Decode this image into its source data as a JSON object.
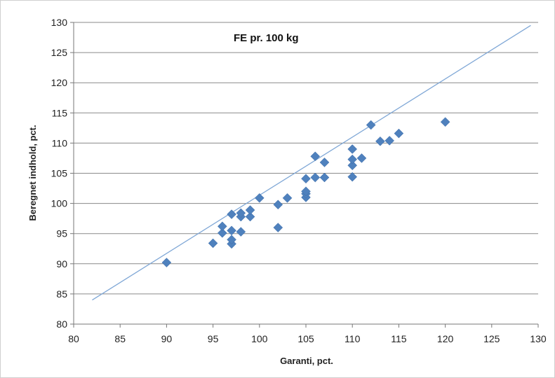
{
  "chart_data": {
    "type": "scatter",
    "title": "FE pr. 100 kg",
    "xlabel": "Garanti, pct.",
    "ylabel": "Beregnet indhold, pct.",
    "xlim": [
      80,
      130
    ],
    "ylim": [
      80,
      130
    ],
    "xticks": [
      "80",
      "85",
      "90",
      "95",
      "100",
      "105",
      "110",
      "115",
      "120",
      "125",
      "130"
    ],
    "yticks": [
      "80",
      "85",
      "90",
      "95",
      "100",
      "105",
      "110",
      "115",
      "120",
      "125",
      "130"
    ],
    "grid": "horizontal",
    "legend": "none",
    "marker": "diamond",
    "colors": {
      "marker": "#4F81BD",
      "line": "#7FA7D6",
      "grid": "#8a8a8a"
    },
    "reference_line": {
      "x": [
        82,
        129.2
      ],
      "y": [
        84,
        129.5
      ]
    },
    "points": [
      {
        "x": 90,
        "y": 90.2
      },
      {
        "x": 95,
        "y": 93.4
      },
      {
        "x": 96,
        "y": 95.1
      },
      {
        "x": 96,
        "y": 96.2
      },
      {
        "x": 97,
        "y": 93.3
      },
      {
        "x": 97,
        "y": 94.0
      },
      {
        "x": 97,
        "y": 95.5
      },
      {
        "x": 97,
        "y": 98.2
      },
      {
        "x": 98,
        "y": 95.3
      },
      {
        "x": 98,
        "y": 97.8
      },
      {
        "x": 98,
        "y": 98.4
      },
      {
        "x": 99,
        "y": 97.8
      },
      {
        "x": 99,
        "y": 98.9
      },
      {
        "x": 100,
        "y": 100.9
      },
      {
        "x": 102,
        "y": 96.0
      },
      {
        "x": 102,
        "y": 99.8
      },
      {
        "x": 103,
        "y": 100.9
      },
      {
        "x": 105,
        "y": 101.0
      },
      {
        "x": 105,
        "y": 101.6
      },
      {
        "x": 105,
        "y": 102.0
      },
      {
        "x": 105,
        "y": 104.1
      },
      {
        "x": 106,
        "y": 104.3
      },
      {
        "x": 106,
        "y": 107.8
      },
      {
        "x": 107,
        "y": 104.3
      },
      {
        "x": 107,
        "y": 106.8
      },
      {
        "x": 110,
        "y": 104.4
      },
      {
        "x": 110,
        "y": 106.3
      },
      {
        "x": 110,
        "y": 107.3
      },
      {
        "x": 110,
        "y": 109.0
      },
      {
        "x": 111,
        "y": 107.5
      },
      {
        "x": 112,
        "y": 113.0
      },
      {
        "x": 113,
        "y": 110.3
      },
      {
        "x": 114,
        "y": 110.4
      },
      {
        "x": 115,
        "y": 111.6
      },
      {
        "x": 120,
        "y": 113.5
      }
    ]
  }
}
